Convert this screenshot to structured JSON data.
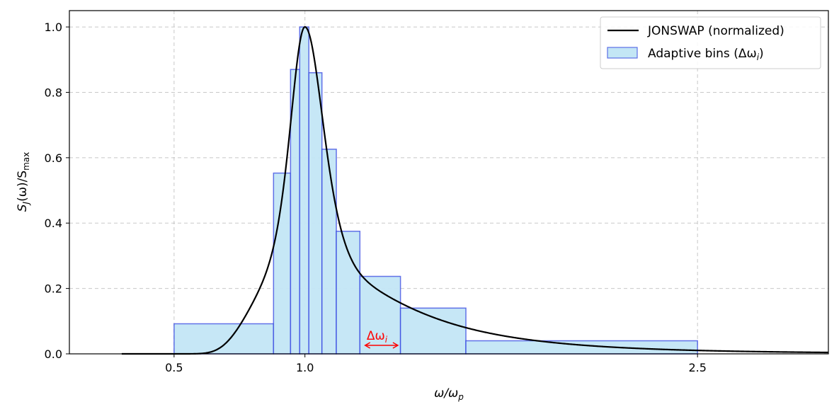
{
  "chart_data": {
    "type": "bar",
    "xlabel": "ω/ω",
    "xlabel_sub": "p",
    "ylabel_main": "S",
    "ylabel_sub1": "J",
    "ylabel_mid": "(ω)/S",
    "ylabel_sub2": "max",
    "xlim": [
      0.1,
      3.0
    ],
    "ylim": [
      0.0,
      1.05
    ],
    "x_ticks": [
      {
        "value": 0.5,
        "label": "0.5"
      },
      {
        "value": 1.0,
        "label": "1.0"
      },
      {
        "value": 2.5,
        "label": "2.5"
      }
    ],
    "y_ticks": [
      {
        "value": 0.0,
        "label": "0.0"
      },
      {
        "value": 0.2,
        "label": "0.2"
      },
      {
        "value": 0.4,
        "label": "0.4"
      },
      {
        "value": 0.6,
        "label": "0.6"
      },
      {
        "value": 0.8,
        "label": "0.8"
      },
      {
        "value": 1.0,
        "label": "1.0"
      }
    ],
    "grid": true,
    "legend_position": "top-right",
    "series": [
      {
        "name": "JONSWAP (normalized)",
        "kind": "line",
        "color": "#000000",
        "peak_freq": 1.0,
        "gamma": 3.3,
        "x_range": [
          0.3,
          3.0
        ]
      },
      {
        "name": "Adaptive bins (Δω",
        "name_sub": "i",
        "name_suffix": ")",
        "kind": "bar",
        "fill": "#c3e6f5",
        "edge": "#2b3ae0",
        "bins": [
          {
            "left": 0.5,
            "right": 0.88,
            "value": 0.092
          },
          {
            "left": 0.88,
            "right": 0.945,
            "value": 0.553
          },
          {
            "left": 0.945,
            "right": 0.98,
            "value": 0.87
          },
          {
            "left": 0.98,
            "right": 1.015,
            "value": 1.0
          },
          {
            "left": 1.015,
            "right": 1.065,
            "value": 0.86
          },
          {
            "left": 1.065,
            "right": 1.12,
            "value": 0.626
          },
          {
            "left": 1.12,
            "right": 1.21,
            "value": 0.375
          },
          {
            "left": 1.21,
            "right": 1.365,
            "value": 0.237
          },
          {
            "left": 1.365,
            "right": 1.615,
            "value": 0.14
          },
          {
            "left": 1.615,
            "right": 2.5,
            "value": 0.04
          }
        ]
      }
    ],
    "annotation": {
      "text": "Δω",
      "text_sub": "i",
      "color": "#ff0000",
      "x": 1.29,
      "y": 0.026,
      "x_start": 1.23,
      "x_end": 1.355
    }
  }
}
